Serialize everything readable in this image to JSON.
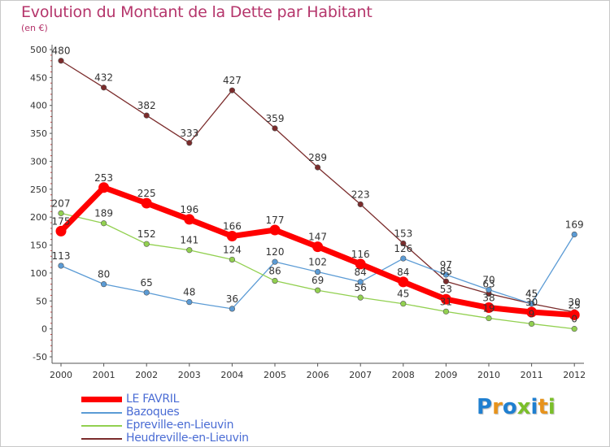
{
  "title": "Evolution du Montant de la Dette par Habitant",
  "unit": "(en €)",
  "logo": {
    "text": "Proxiti",
    "colors": [
      "#1f7fd0",
      "#e7931c",
      "#1f7fd0",
      "#7bbf2a",
      "#1f7fd0",
      "#e7931c",
      "#7bbf2a"
    ]
  },
  "chart_data": {
    "type": "line",
    "x": [
      2000,
      2001,
      2002,
      2003,
      2004,
      2005,
      2006,
      2007,
      2008,
      2009,
      2010,
      2011,
      2012
    ],
    "ylim": [
      -50,
      500
    ],
    "yticks": [
      -50,
      0,
      50,
      100,
      150,
      200,
      250,
      300,
      350,
      400,
      450,
      500
    ],
    "grid": false,
    "legend_position": "bottom-left",
    "series": [
      {
        "name": "LE FAVRIL",
        "color": "#ff0000",
        "values": [
          175,
          253,
          225,
          196,
          166,
          177,
          147,
          116,
          84,
          53,
          38,
          30,
          25
        ]
      },
      {
        "name": "Bazoques",
        "color": "#5b9bd5",
        "values": [
          113,
          80,
          65,
          48,
          36,
          120,
          102,
          84,
          126,
          97,
          70,
          45,
          169
        ]
      },
      {
        "name": "Epreville-en-Lieuvin",
        "color": "#92d050",
        "values": [
          207,
          189,
          152,
          141,
          124,
          86,
          69,
          56,
          45,
          31,
          19,
          9,
          0
        ]
      },
      {
        "name": "Heudreville-en-Lieuvin",
        "color": "#7b2c2c",
        "values": [
          480,
          432,
          382,
          333,
          427,
          359,
          289,
          223,
          153,
          85,
          63,
          45,
          30
        ]
      }
    ]
  }
}
